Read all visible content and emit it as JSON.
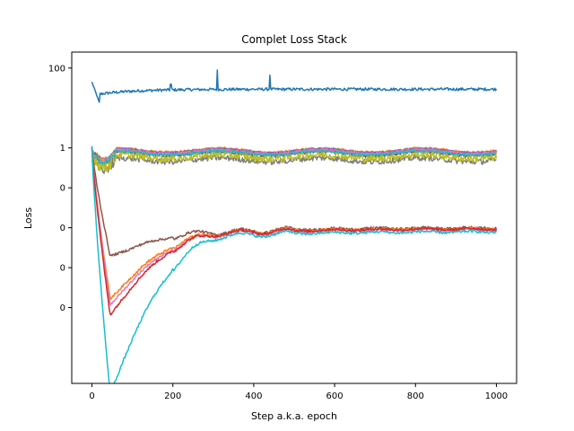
{
  "chart_data": {
    "type": "line",
    "title": "Complet Loss Stack",
    "xlabel": "Step a.k.a. epoch",
    "ylabel": "Loss",
    "xlim": [
      -50,
      1050
    ],
    "ylim_decades": [
      -5.9,
      2.4
    ],
    "y_scale": "log",
    "grid": false,
    "legend": "none",
    "x_ticks": [
      0,
      200,
      400,
      600,
      800,
      1000
    ],
    "x_tick_labels": [
      "0",
      "200",
      "400",
      "600",
      "800",
      "1000"
    ],
    "y_tick_decades": [
      2,
      0,
      -1,
      -2,
      -3,
      -4
    ],
    "y_tick_labels": [
      "100",
      "1",
      "0",
      "0",
      "0",
      "0"
    ],
    "steps": 1000,
    "series": [
      {
        "color": "#1f77b4",
        "kind": "top",
        "start": 1.65,
        "dip": 1.08,
        "level": 1.47,
        "noise": 0.035,
        "spikes": [
          [
            310,
            1.95
          ],
          [
            440,
            1.82
          ],
          [
            195,
            1.6
          ]
        ]
      },
      {
        "color": "#ff7f0e",
        "kind": "high",
        "level": -0.06,
        "noise": 0.03
      },
      {
        "color": "#2ca02c",
        "kind": "high",
        "level": -0.09,
        "noise": 0.04
      },
      {
        "color": "#d62728",
        "kind": "high",
        "level": -0.12,
        "noise": 0.03
      },
      {
        "color": "#9467bd",
        "kind": "high",
        "level": -0.07,
        "noise": 0.02
      },
      {
        "color": "#8c564b",
        "kind": "high",
        "level": -0.15,
        "noise": 0.04
      },
      {
        "color": "#e377c2",
        "kind": "high",
        "level": -0.1,
        "noise": 0.03
      },
      {
        "color": "#7f7f7f",
        "kind": "high",
        "level": -0.3,
        "noise": 0.07
      },
      {
        "color": "#bcbd22",
        "kind": "high",
        "level": -0.22,
        "noise": 0.09
      },
      {
        "color": "#17becf",
        "kind": "high",
        "level": -0.13,
        "noise": 0.03
      },
      {
        "color": "#8c564b",
        "kind": "low",
        "level": -2.0,
        "min": -2.72,
        "noise": 0.02
      },
      {
        "color": "#ff7f0e",
        "kind": "low",
        "level": -2.02,
        "min": -3.8,
        "noise": 0.02
      },
      {
        "color": "#e377c2",
        "kind": "low",
        "level": -2.05,
        "min": -3.95,
        "noise": 0.02
      },
      {
        "color": "#d62728",
        "kind": "low",
        "level": -2.03,
        "min": -4.2,
        "noise": 0.02
      },
      {
        "color": "#17becf",
        "kind": "low",
        "level": -2.1,
        "min": -6.2,
        "noise": 0.02
      }
    ]
  }
}
